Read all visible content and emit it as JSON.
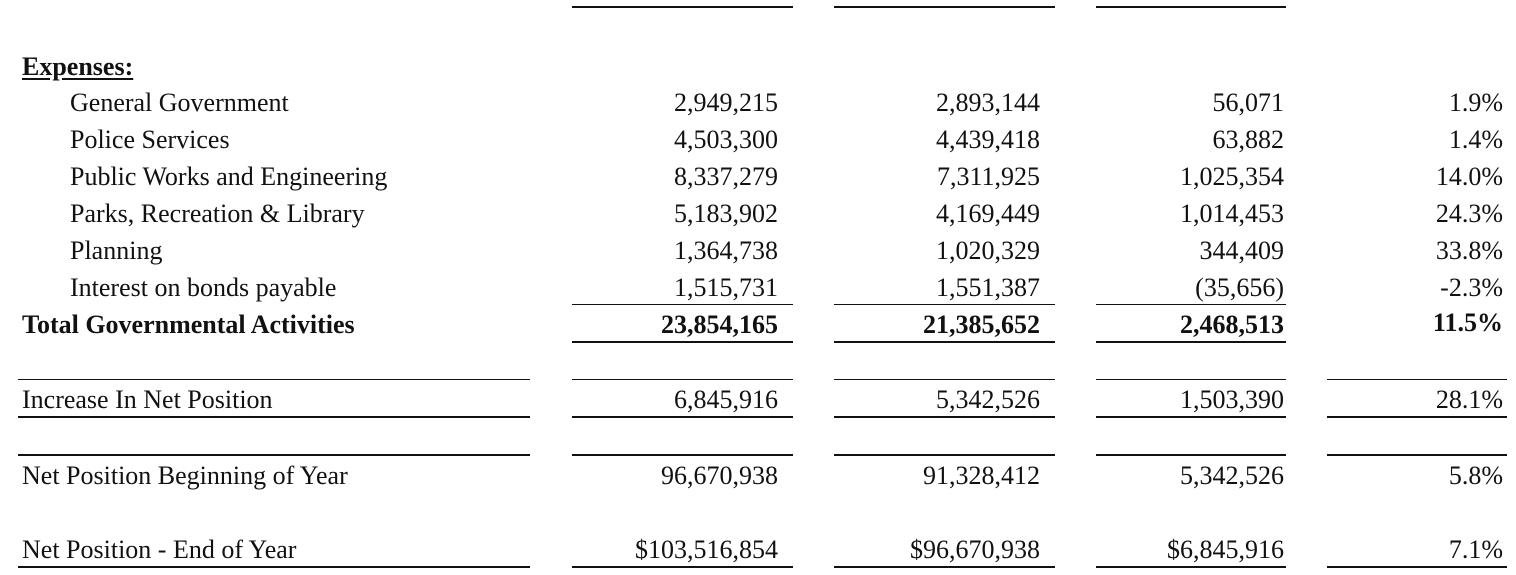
{
  "expenses_header": "Expenses:",
  "expense_rows": [
    {
      "label": "General Government",
      "c1": "2,949,215",
      "c2": "2,893,144",
      "c3": "56,071",
      "pct": "1.9%"
    },
    {
      "label": "Police Services",
      "c1": "4,503,300",
      "c2": "4,439,418",
      "c3": "63,882",
      "pct": "1.4%"
    },
    {
      "label": "Public Works and Engineering",
      "c1": "8,337,279",
      "c2": "7,311,925",
      "c3": "1,025,354",
      "pct": "14.0%"
    },
    {
      "label": "Parks, Recreation & Library",
      "c1": "5,183,902",
      "c2": "4,169,449",
      "c3": "1,014,453",
      "pct": "24.3%"
    },
    {
      "label": "Planning",
      "c1": "1,364,738",
      "c2": "1,020,329",
      "c3": "344,409",
      "pct": "33.8%"
    },
    {
      "label": "Interest on bonds payable",
      "c1": "1,515,731",
      "c2": "1,551,387",
      "c3": "(35,656)",
      "pct": "-2.3%"
    }
  ],
  "total": {
    "label": "Total Governmental Activities",
    "c1": "23,854,165",
    "c2": "21,385,652",
    "c3": "2,468,513",
    "pct": "11.5%"
  },
  "increase": {
    "label": "Increase In Net Position",
    "c1": "6,845,916",
    "c2": "5,342,526",
    "c3": "1,503,390",
    "pct": "28.1%"
  },
  "beginning": {
    "label": "Net Position Beginning of Year",
    "c1": "96,670,938",
    "c2": "91,328,412",
    "c3": "5,342,526",
    "pct": "5.8%"
  },
  "end": {
    "label": "Net Position - End of Year",
    "c1": "$103,516,854",
    "c2": "$96,670,938",
    "c3": "$6,845,916",
    "pct": "7.1%"
  }
}
